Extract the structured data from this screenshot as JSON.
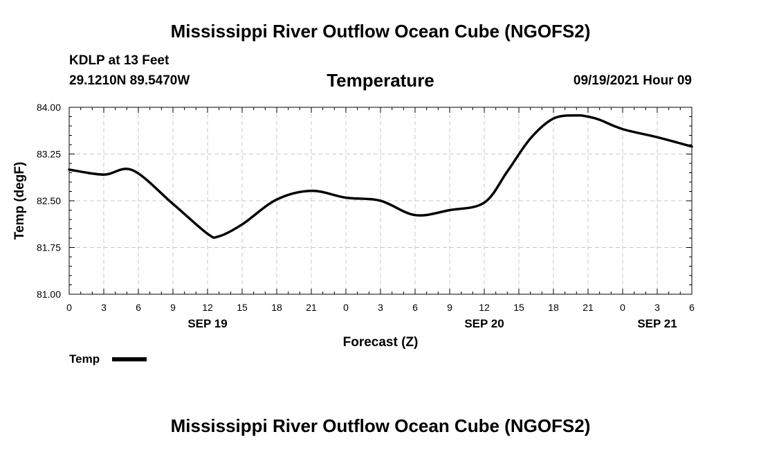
{
  "header": {
    "main_title": "Mississippi River Outflow Ocean Cube (NGOFS2)",
    "station": "KDLP at 13 Feet",
    "coordinates": "29.1210N  89.5470W",
    "subtitle": "Temperature",
    "datetime": "09/19/2021 Hour 09"
  },
  "footer": {
    "title": "Mississippi River Outflow Ocean Cube (NGOFS2)"
  },
  "legend": {
    "label": "Temp",
    "color": "#000000"
  },
  "chart_data": {
    "type": "line",
    "title": "Temperature",
    "xlabel": "Forecast (Z)",
    "ylabel": "Temp (degF)",
    "xlim": [
      0,
      54
    ],
    "ylim": [
      81.0,
      84.0
    ],
    "yticks": [
      "81.00",
      "81.75",
      "82.50",
      "83.25",
      "84.00"
    ],
    "xticks": [
      "0",
      "3",
      "6",
      "9",
      "12",
      "15",
      "18",
      "21",
      "0",
      "3",
      "6",
      "9",
      "12",
      "15",
      "18",
      "21",
      "0",
      "3",
      "6"
    ],
    "date_labels": [
      {
        "hour": 12,
        "label": "SEP 19"
      },
      {
        "hour": 36,
        "label": "SEP 20"
      },
      {
        "hour": 51,
        "label": "SEP 21"
      }
    ],
    "grid": true,
    "series": [
      {
        "name": "Temp",
        "color": "#000000",
        "x": [
          0,
          3,
          5.5,
          9,
          12,
          13,
          15,
          18,
          21,
          24,
          27,
          30,
          33,
          36,
          38,
          40,
          42,
          44,
          45,
          46,
          48,
          51,
          54
        ],
        "y": [
          83.0,
          82.92,
          82.99,
          82.45,
          81.97,
          81.93,
          82.12,
          82.52,
          82.66,
          82.55,
          82.5,
          82.27,
          82.35,
          82.47,
          82.97,
          83.5,
          83.82,
          83.87,
          83.85,
          83.8,
          83.65,
          83.52,
          83.37
        ]
      }
    ]
  }
}
